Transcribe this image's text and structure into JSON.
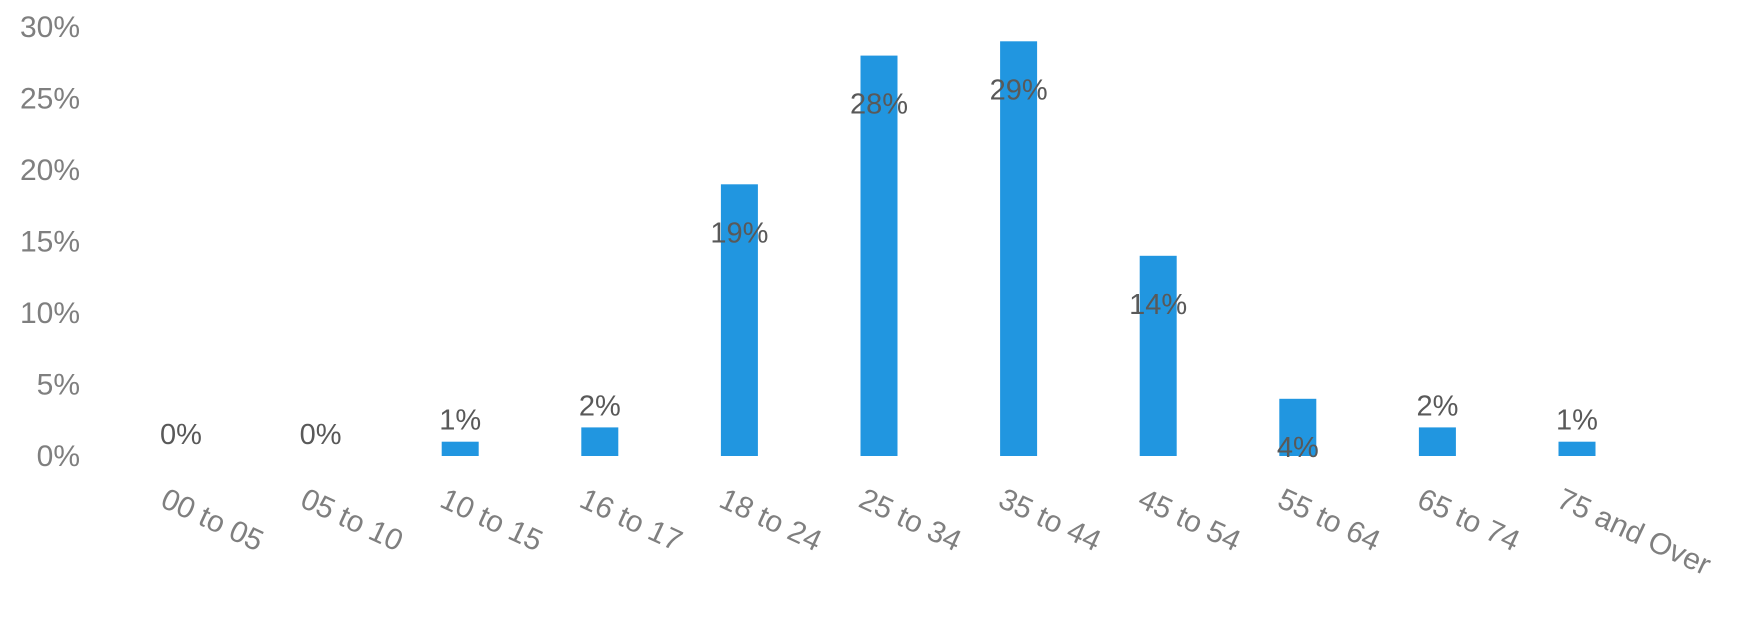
{
  "chart_data": {
    "type": "bar",
    "title": "",
    "xlabel": "",
    "ylabel": "",
    "categories": [
      "00 to 05",
      "05 to 10",
      "10 to 15",
      "16 to 17",
      "18 to 24",
      "25 to 34",
      "35 to 44",
      "45 to 54",
      "55 to 64",
      "65 to 74",
      "75 and Over"
    ],
    "values": [
      0,
      0,
      1,
      2,
      19,
      28,
      29,
      14,
      4,
      2,
      1
    ],
    "data_labels": [
      "0%",
      "0%",
      "1%",
      "2%",
      "19%",
      "28%",
      "29%",
      "14%",
      "4%",
      "2%",
      "1%"
    ],
    "yticks": [
      "0%",
      "5%",
      "10%",
      "15%",
      "20%",
      "25%",
      "30%"
    ],
    "ylim": [
      0,
      30
    ],
    "grid": false,
    "legend": "none",
    "bar_color": "#2196e0"
  }
}
